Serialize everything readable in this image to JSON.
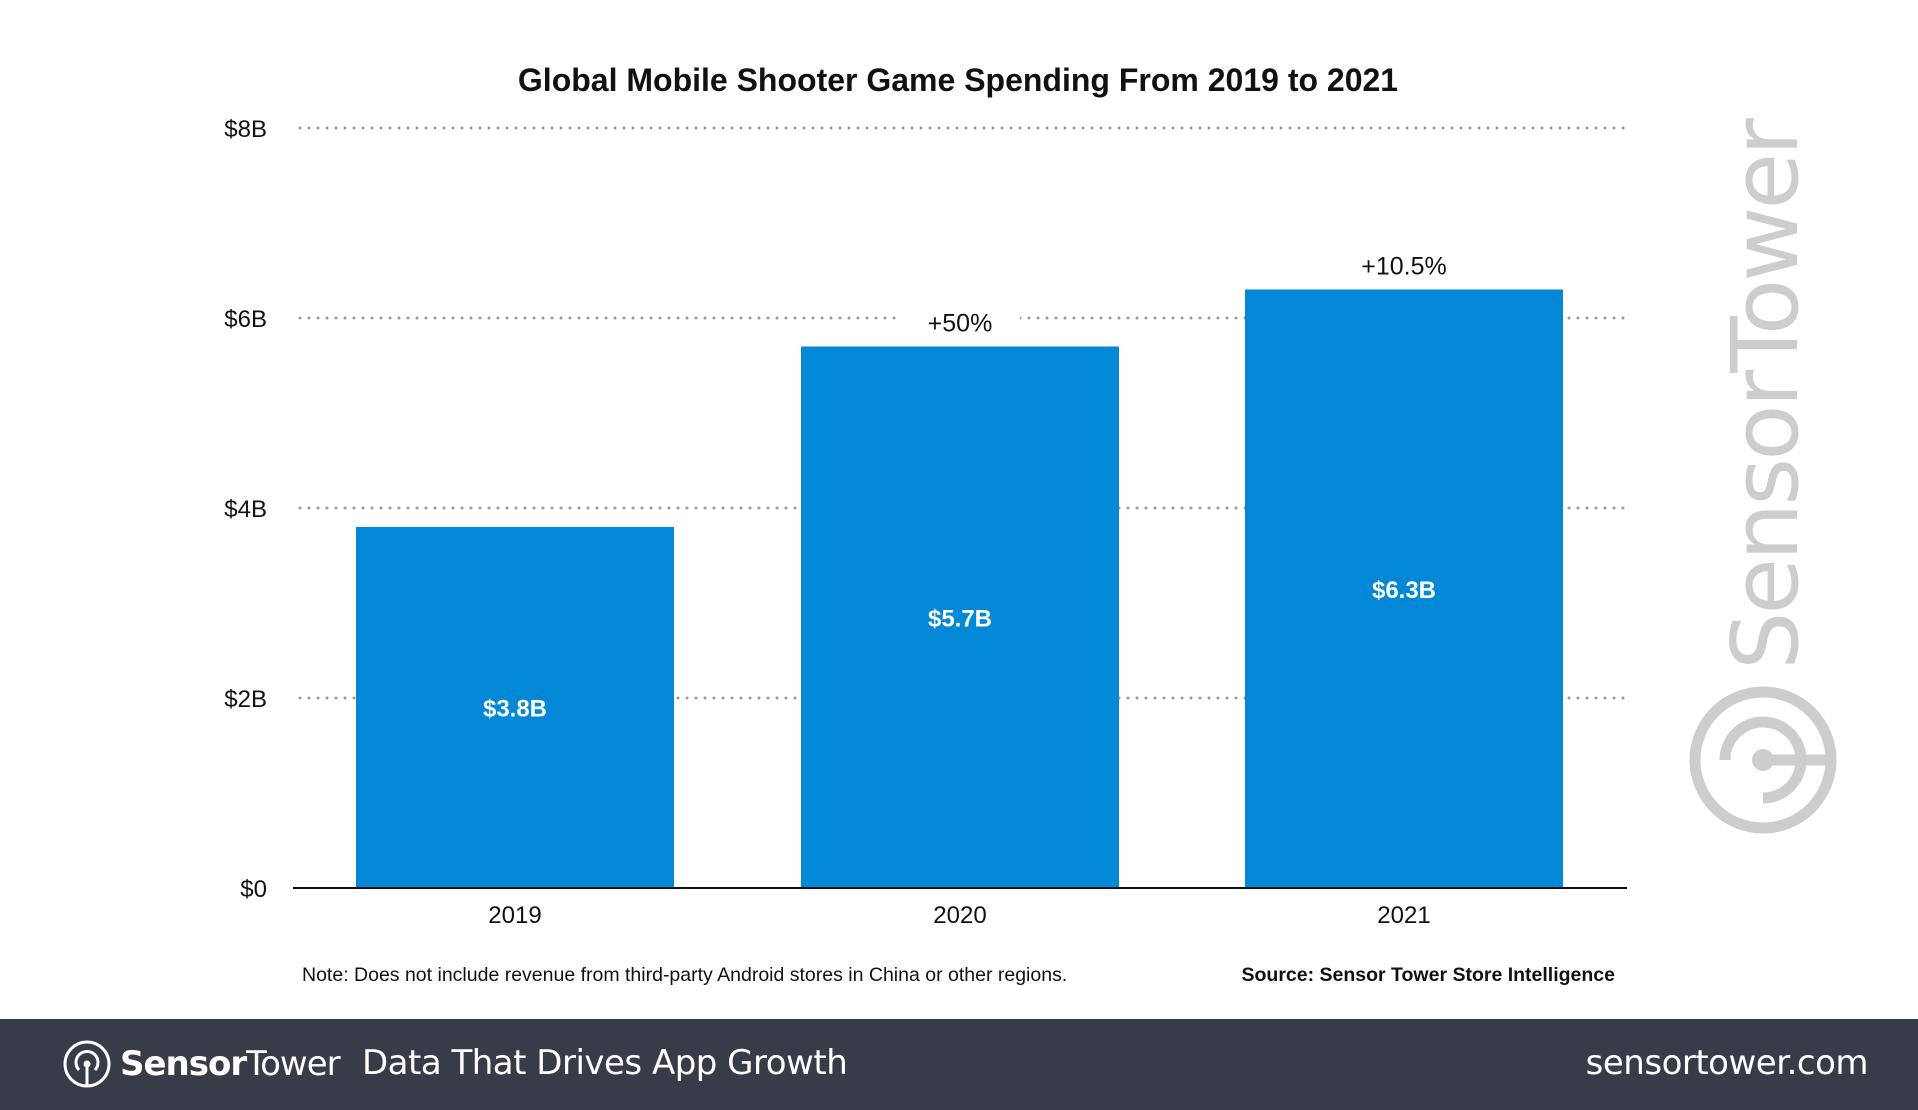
{
  "chart_data": {
    "type": "bar",
    "title": "Global Mobile Shooter Game Spending From 2019 to 2021",
    "categories": [
      "2019",
      "2020",
      "2021"
    ],
    "values": [
      3.8,
      5.7,
      6.3
    ],
    "data_labels": [
      "$3.8B",
      "$5.7B",
      "$6.3B"
    ],
    "growth_labels": [
      "",
      "+50%",
      "+10.5%"
    ],
    "ylim": [
      0,
      8
    ],
    "yticks": [
      0,
      2,
      4,
      6,
      8
    ],
    "ytick_labels": [
      "$0",
      "$2B",
      "$4B",
      "$6B",
      "$8B"
    ],
    "xlabel": "",
    "ylabel": "",
    "grid": true,
    "legend": "none",
    "bar_color": "#0288d6",
    "note": "Note: Does not include revenue from third-party Android stores in China or other regions.",
    "source": "Source: Sensor Tower Store Intelligence"
  },
  "watermark": "SensorTower",
  "footer": {
    "brand_bold": "Sensor",
    "brand_light": "Tower",
    "tagline": "Data That Drives App Growth",
    "site": "sensortower.com",
    "background": "#383c48"
  }
}
